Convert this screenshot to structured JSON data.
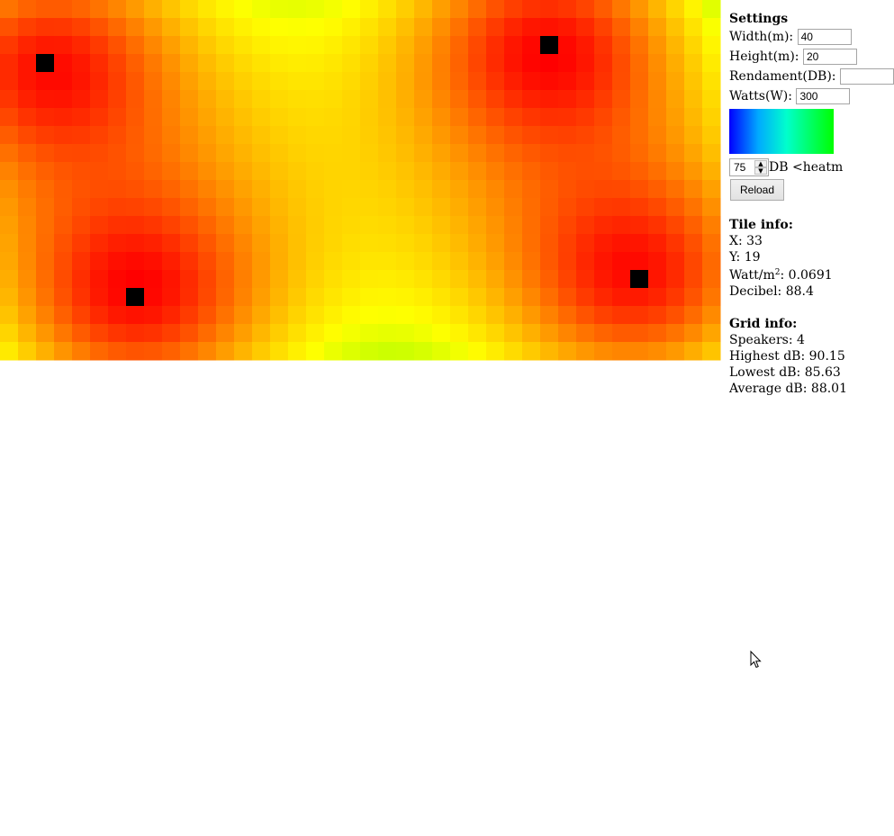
{
  "heatmap": {
    "grid_columns": 40,
    "grid_rows": 20,
    "speaker_tiles": [
      [
        2,
        3
      ],
      [
        30,
        2
      ],
      [
        7,
        16
      ],
      [
        35,
        15
      ]
    ],
    "colors": {
      "hot": "#ff0000",
      "mid": "#ffa000",
      "cool": "#ffff00",
      "coolest": "#ccff00"
    }
  },
  "settings": {
    "title": "Settings",
    "width_label": "Width(m):",
    "width_value": "40",
    "height_label": "Height(m):",
    "height_value": "20",
    "rendament_label": "Rendament(DB):",
    "watts_label": "Watts(W):",
    "watts_value": "300",
    "threshold_value": "75",
    "threshold_suffix": "DB <heatm",
    "reload_label": "Reload"
  },
  "tile_info": {
    "title": "Tile info:",
    "x_label": "X:",
    "x_value": "33",
    "y_label": "Y:",
    "y_value": "19",
    "watt_label_prefix": "Watt/m",
    "watt_label_sup": "2",
    "watt_value": ": 0.0691",
    "decibel_label": "Decibel:",
    "decibel_value": "88.4"
  },
  "grid_info": {
    "title": "Grid info:",
    "speakers_label": "Speakers:",
    "speakers_value": "4",
    "highest_label": "Highest dB:",
    "highest_value": "90.15",
    "lowest_label": "Lowest dB:",
    "lowest_value": "85.63",
    "average_label": "Average dB:",
    "average_value": "88.01"
  }
}
